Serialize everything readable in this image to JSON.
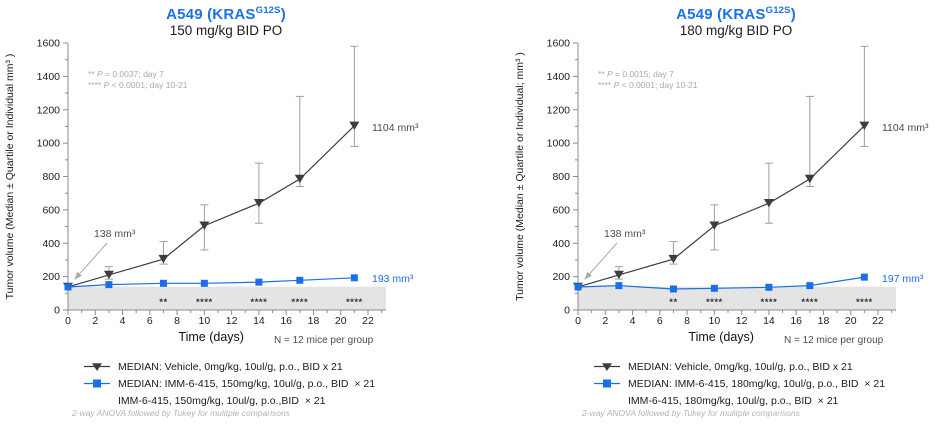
{
  "colors": {
    "title_blue": "#1a73e8",
    "vehicle_series": "#3d3d3d",
    "treated_series": "#1a6fe8",
    "error_bar": "#9e9e9e",
    "shaded_band": "#e4e4e4",
    "annotation_gray": "#a9a9a9",
    "axis": "#8c8c8c"
  },
  "chart_data": [
    {
      "type": "line",
      "title": "A549 (KRAS G12S)",
      "title_parts": {
        "prefix": "A549 (KRAS",
        "sup": "G12S",
        "suffix": ")"
      },
      "subtitle": "150 mg/kg BID PO",
      "xlabel": "Time (days)",
      "ylabel": "Tumor volume (Median ± Quartile or Individual mm³ )",
      "n_label": "N = 12 mice per group",
      "x": [
        0,
        3,
        7,
        10,
        14,
        17,
        21
      ],
      "x_ticks": [
        0,
        2,
        4,
        6,
        8,
        10,
        12,
        14,
        16,
        18,
        20,
        22
      ],
      "y_ticks": [
        0,
        200,
        400,
        600,
        800,
        1000,
        1200,
        1400,
        1600
      ],
      "xlim": [
        0,
        23.3
      ],
      "ylim": [
        0,
        1600
      ],
      "grid": false,
      "legend_position": "bottom",
      "series": [
        {
          "name": "MEDIAN: Vehicle, 0mg/kg, 10ul/g, p.o., BID x 21",
          "marker": "triangle-down",
          "color": "#3d3d3d",
          "values": [
            138,
            210,
            305,
            505,
            640,
            785,
            1104
          ],
          "err_low": [
            null,
            185,
            275,
            360,
            520,
            740,
            980
          ],
          "err_high": [
            null,
            260,
            410,
            630,
            880,
            1280,
            1580
          ],
          "end_label": "1104 mm³"
        },
        {
          "name": "MEDIAN: IMM-6-415, 150mg/kg, 10ul/g, p.o., BID  × 21",
          "marker": "square",
          "color": "#1a6fe8",
          "values": [
            138,
            152,
            160,
            160,
            167,
            178,
            193
          ],
          "end_label": "193 mm³"
        }
      ],
      "legend_extra": "IMM-6-415, 150mg/kg, 10ul/g, p.o.,BID  × 21",
      "significance": {
        "days": [
          7,
          10,
          14,
          17,
          21
        ],
        "marks": [
          "**",
          "****",
          "****",
          "****",
          "****"
        ]
      },
      "p_lines": [
        [
          "**",
          "P",
          " = 0.0037; day 7"
        ],
        [
          "****",
          "P",
          " < 0.0001; day 10-21"
        ]
      ],
      "start_annotation": "138 mm³",
      "shaded_band": {
        "from": 0,
        "to": 140,
        "color": "#e4e4e4"
      },
      "footnote": "2-way ANOVA followed by Tukey for mulitple comparisons"
    },
    {
      "type": "line",
      "title": "A549 (KRAS G12S)",
      "title_parts": {
        "prefix": "A549 (KRAS",
        "sup": "G12S",
        "suffix": ")"
      },
      "subtitle": "180 mg/kg BID PO",
      "xlabel": "Time (days)",
      "ylabel": "Tumor volume (Median ± Quartile or Individual; mm³ )",
      "n_label": "N = 12 mice per group",
      "x": [
        0,
        3,
        7,
        10,
        14,
        17,
        21
      ],
      "x_ticks": [
        0,
        2,
        4,
        6,
        8,
        10,
        12,
        14,
        16,
        18,
        20,
        22
      ],
      "y_ticks": [
        0,
        200,
        400,
        600,
        800,
        1000,
        1200,
        1400,
        1600
      ],
      "xlim": [
        0,
        23.3
      ],
      "ylim": [
        0,
        1600
      ],
      "grid": false,
      "legend_position": "bottom",
      "series": [
        {
          "name": "MEDIAN: Vehicle, 0mg/kg, 10ul/g, p.o., BID x 21",
          "marker": "triangle-down",
          "color": "#3d3d3d",
          "values": [
            138,
            210,
            305,
            505,
            640,
            785,
            1104
          ],
          "err_low": [
            null,
            185,
            275,
            360,
            520,
            740,
            980
          ],
          "err_high": [
            null,
            260,
            410,
            630,
            880,
            1280,
            1580
          ],
          "end_label": "1104 mm³"
        },
        {
          "name": "MEDIAN: IMM-6-415, 180mg/kg, 10ul/g, p.o., BID  × 21",
          "marker": "square",
          "color": "#1a6fe8",
          "values": [
            138,
            146,
            126,
            130,
            136,
            146,
            197
          ],
          "end_label": "197 mm³"
        }
      ],
      "legend_extra": "IMM-6-415, 180mg/kg, 10ul/g, p.o., BID  × 21",
      "significance": {
        "days": [
          7,
          10,
          14,
          17,
          21
        ],
        "marks": [
          "**",
          "****",
          "****",
          "****",
          "****"
        ]
      },
      "p_lines": [
        [
          "**",
          "P",
          " = 0.0015; day 7"
        ],
        [
          "****",
          "P",
          " < 0.0001; day 10-21"
        ]
      ],
      "start_annotation": "138 mm³",
      "shaded_band": {
        "from": 0,
        "to": 140,
        "color": "#e4e4e4"
      },
      "footnote": "2-way ANOVA followed by Tukey for mulitple comparisons"
    }
  ]
}
